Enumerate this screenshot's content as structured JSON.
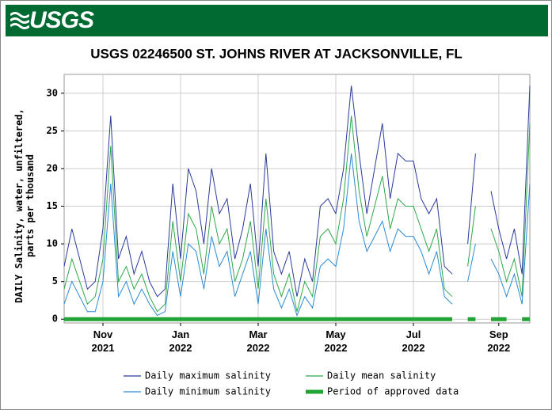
{
  "header": {
    "logo": "USGS"
  },
  "chart_data": {
    "type": "line",
    "title": "USGS 02246500 ST. JOHNS RIVER AT JACKSONVILLE, FL",
    "y_label": "DAILY Salinity, water, unfiltered,\nparts per thousand",
    "categories": [
      null,
      null,
      null,
      null,
      null,
      "Nov\n2021",
      null,
      null,
      null,
      null,
      null,
      null,
      null,
      null,
      null,
      "Jan\n2022",
      null,
      null,
      null,
      null,
      null,
      null,
      null,
      null,
      null,
      "Mar\n2022",
      null,
      null,
      null,
      null,
      null,
      null,
      null,
      null,
      null,
      "May\n2022",
      null,
      null,
      null,
      null,
      null,
      null,
      null,
      null,
      null,
      "Jul\n2022",
      null,
      null,
      null,
      null,
      null,
      null,
      null,
      null,
      null,
      null,
      "Sep\n2022",
      null,
      null,
      null,
      null
    ],
    "ylim": [
      -0.5,
      32.5
    ],
    "yticks": [
      0,
      5,
      10,
      15,
      20,
      25,
      30
    ],
    "grid": true,
    "series": [
      {
        "name": "Daily maximum salinity",
        "color": "#2b3a9b",
        "width": 1,
        "values": [
          7,
          12,
          8,
          4,
          5,
          12,
          27,
          8,
          11,
          6,
          9,
          5,
          3,
          4,
          18,
          8,
          20,
          17,
          10,
          20,
          14,
          16,
          8,
          12,
          18,
          7,
          22,
          9,
          6,
          9,
          3,
          8,
          5,
          15,
          16,
          14,
          20,
          31,
          22,
          14,
          20,
          26,
          16,
          22,
          21,
          21,
          16,
          14,
          16,
          7,
          6,
          null,
          10,
          22,
          null,
          17,
          12,
          8,
          12,
          6,
          31
        ]
      },
      {
        "name": "Daily mean salinity",
        "color": "#2ea84a",
        "width": 1,
        "values": [
          4,
          8,
          5,
          2,
          3,
          8,
          23,
          5,
          7,
          4,
          6,
          3,
          1,
          2,
          13,
          5,
          14,
          12,
          6,
          15,
          10,
          12,
          5,
          8,
          13,
          4,
          16,
          6,
          3,
          6,
          1,
          5,
          3,
          11,
          12,
          10,
          16,
          27,
          17,
          11,
          15,
          19,
          12,
          16,
          15,
          15,
          12,
          9,
          12,
          4,
          3,
          null,
          7,
          15,
          null,
          12,
          9,
          5,
          8,
          3,
          26
        ]
      },
      {
        "name": "Daily minimum salinity",
        "color": "#2a8ad6",
        "width": 1,
        "values": [
          2,
          5,
          3,
          1,
          1,
          5,
          18,
          3,
          5,
          2,
          4,
          2,
          0.5,
          1,
          9,
          3,
          10,
          9,
          4,
          11,
          7,
          9,
          3,
          6,
          9,
          2,
          12,
          4,
          1.5,
          4,
          0.5,
          3,
          1.5,
          7,
          8,
          7,
          12,
          22,
          13,
          9,
          11,
          13,
          9,
          12,
          11,
          11,
          9,
          6,
          9,
          3,
          2,
          null,
          5,
          10,
          null,
          8,
          6,
          3,
          6,
          2,
          18
        ]
      },
      {
        "name": "Period of approved data",
        "color": "#21a335",
        "width": 5,
        "values": [
          0,
          0,
          0,
          0,
          0,
          0,
          0,
          0,
          0,
          0,
          0,
          0,
          0,
          0,
          0,
          0,
          0,
          0,
          0,
          0,
          0,
          0,
          0,
          0,
          0,
          0,
          0,
          0,
          0,
          0,
          0,
          0,
          0,
          0,
          0,
          0,
          0,
          0,
          0,
          0,
          0,
          0,
          0,
          0,
          0,
          0,
          0,
          0,
          0,
          0,
          0,
          null,
          0,
          0,
          null,
          0,
          0,
          0,
          null,
          0,
          0
        ]
      }
    ]
  }
}
